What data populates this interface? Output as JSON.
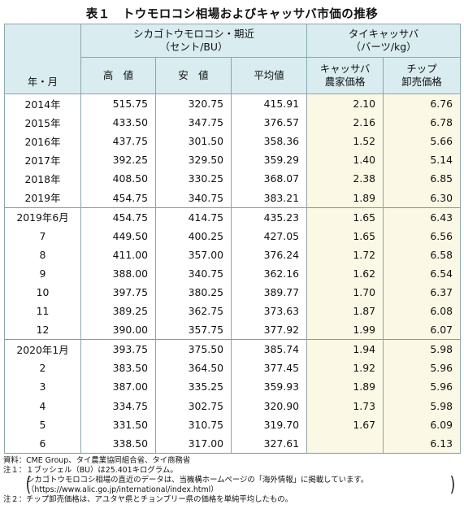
{
  "title": "表１　トウモロコシ相場およびキャッサバ市価の推移",
  "header": {
    "group_corn": [
      "シカゴトウモロコシ・期近",
      "（セント/BU）"
    ],
    "group_cassava": [
      "タイキャッサバ",
      "（バーツ/kg）"
    ],
    "row_label": "年・月",
    "cols": [
      "高　値",
      "安　値",
      "平均値",
      "キャッサバ農家価格",
      "チップ卸売価格"
    ]
  },
  "cols_split": {
    "cassava_farm": [
      "キャッサバ",
      "農家価格"
    ],
    "chip_wholesale": [
      "チップ",
      "卸売価格"
    ]
  },
  "rows": [
    {
      "label": "2014年",
      "high": "515.75",
      "low": "320.75",
      "avg": "415.91",
      "farm": "2.10",
      "chip": "6.76"
    },
    {
      "label": "2015年",
      "high": "433.50",
      "low": "347.75",
      "avg": "376.57",
      "farm": "2.16",
      "chip": "6.78"
    },
    {
      "label": "2016年",
      "high": "437.75",
      "low": "301.50",
      "avg": "358.36",
      "farm": "1.52",
      "chip": "5.66"
    },
    {
      "label": "2017年",
      "high": "392.25",
      "low": "329.50",
      "avg": "359.29",
      "farm": "1.40",
      "chip": "5.14"
    },
    {
      "label": "2018年",
      "high": "408.50",
      "low": "330.25",
      "avg": "368.07",
      "farm": "2.38",
      "chip": "6.85"
    },
    {
      "label": "2019年",
      "high": "454.75",
      "low": "340.75",
      "avg": "383.21",
      "farm": "1.89",
      "chip": "6.30"
    },
    {
      "label": "2019年6月",
      "high": "454.75",
      "low": "414.75",
      "avg": "435.23",
      "farm": "1.65",
      "chip": "6.43"
    },
    {
      "label": "7",
      "high": "449.50",
      "low": "400.25",
      "avg": "427.05",
      "farm": "1.65",
      "chip": "6.56"
    },
    {
      "label": "8",
      "high": "411.00",
      "low": "357.00",
      "avg": "376.24",
      "farm": "1.72",
      "chip": "6.58"
    },
    {
      "label": "9",
      "high": "388.00",
      "low": "340.75",
      "avg": "362.16",
      "farm": "1.62",
      "chip": "6.54"
    },
    {
      "label": "10",
      "high": "397.75",
      "low": "380.25",
      "avg": "389.77",
      "farm": "1.70",
      "chip": "6.37"
    },
    {
      "label": "11",
      "high": "389.25",
      "low": "362.75",
      "avg": "373.63",
      "farm": "1.87",
      "chip": "6.08"
    },
    {
      "label": "12",
      "high": "390.00",
      "low": "357.75",
      "avg": "377.92",
      "farm": "1.99",
      "chip": "6.07"
    },
    {
      "label": "2020年1月",
      "high": "393.75",
      "low": "375.50",
      "avg": "385.74",
      "farm": "1.94",
      "chip": "5.98"
    },
    {
      "label": "2",
      "high": "383.50",
      "low": "364.50",
      "avg": "377.45",
      "farm": "1.92",
      "chip": "5.96"
    },
    {
      "label": "3",
      "high": "387.00",
      "low": "335.25",
      "avg": "359.93",
      "farm": "1.89",
      "chip": "5.96"
    },
    {
      "label": "4",
      "high": "334.75",
      "low": "302.75",
      "avg": "320.90",
      "farm": "1.73",
      "chip": "5.98"
    },
    {
      "label": "5",
      "high": "331.50",
      "low": "310.75",
      "avg": "319.70",
      "farm": "1.67",
      "chip": "6.09"
    },
    {
      "label": "6",
      "high": "338.50",
      "low": "317.00",
      "avg": "327.61",
      "farm": "",
      "chip": "6.13"
    }
  ],
  "notes": {
    "source": "資料：CME Group、タイ農業協同組合省、タイ商務省",
    "note1": "注１：１ブッシェル（BU）は25.401キログラム。",
    "note1_sub1": "シカゴトウモロコシ相場の直近のデータは、当機構ホームページの「海外情報」に掲載しています。",
    "note1_sub2": "（https://www.alic.go.jp/international/index.html）",
    "note2": "注２：チップ卸売価格は、アユタヤ県とチョンブリー県の価格を単純平均したもの。"
  }
}
